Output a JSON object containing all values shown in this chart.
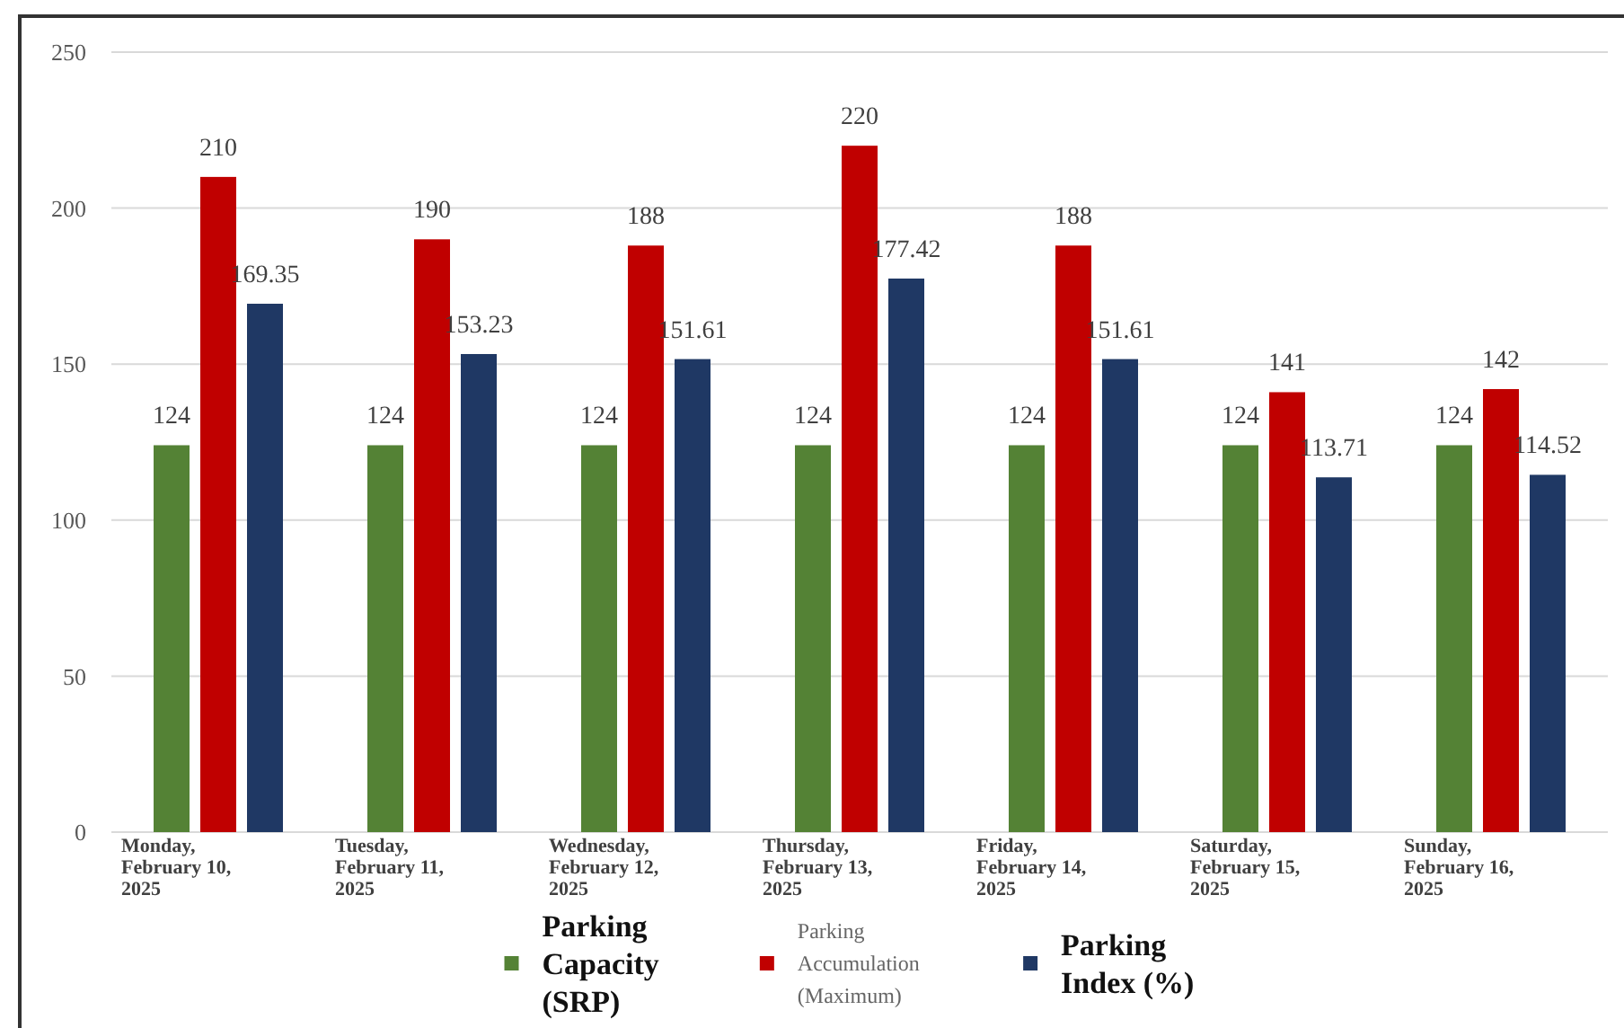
{
  "chart_data": {
    "type": "bar",
    "categories": [
      "Monday, February 10, 2025",
      "Tuesday, February 11, 2025",
      "Wednesday, February 12, 2025",
      "Thursday, February 13, 2025",
      "Friday, February 14, 2025",
      "Saturday, February 15, 2025",
      "Sunday, February 16, 2025"
    ],
    "series": [
      {
        "name": "Parking Capacity (SRP)",
        "color": "#548235",
        "values": [
          124,
          124,
          124,
          124,
          124,
          124,
          124
        ]
      },
      {
        "name": "Parking Accumulation (Maximum)",
        "color": "#c00000",
        "values": [
          210,
          190,
          188,
          220,
          188,
          141,
          142
        ]
      },
      {
        "name": "Parking Index (%)",
        "color": "#1f3864",
        "values": [
          169.35,
          153.23,
          151.61,
          177.42,
          151.61,
          113.71,
          114.52
        ]
      }
    ],
    "ylim": [
      0,
      250
    ],
    "yticks": [
      0,
      50,
      100,
      150,
      200,
      250
    ],
    "grid": "y",
    "legend": "bottom",
    "data_labels": true
  }
}
